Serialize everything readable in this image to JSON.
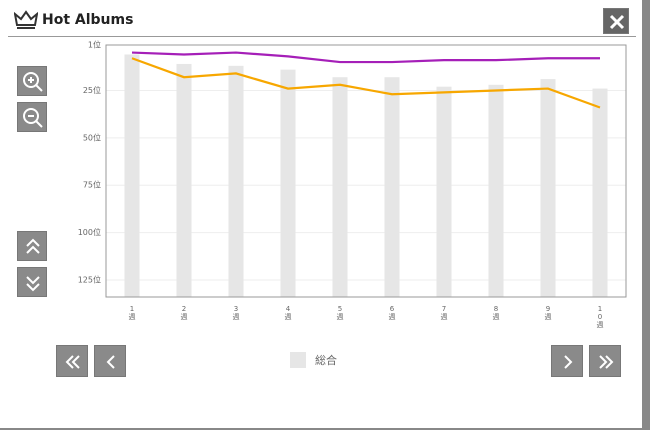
{
  "header": {
    "title": "Hot Albums"
  },
  "chart_data": {
    "type": "bar-line",
    "categories": [
      "1週",
      "2週",
      "3週",
      "4週",
      "5週",
      "6週",
      "7週",
      "8週",
      "9週",
      "10週"
    ],
    "series": [
      {
        "name": "総合",
        "kind": "bar",
        "color": "#e6e6e6",
        "values": [
          6,
          11,
          12,
          14,
          18,
          18,
          23,
          22,
          19,
          24
        ]
      },
      {
        "kind": "line",
        "color": "#a51fb8",
        "values": [
          5,
          6,
          5,
          7,
          10,
          10,
          9,
          9,
          8,
          8
        ]
      },
      {
        "kind": "line",
        "color": "#f7a700",
        "values": [
          8,
          18,
          16,
          24,
          22,
          27,
          26,
          25,
          24,
          34
        ]
      }
    ],
    "ylim": [
      1,
      134
    ],
    "y_reversed": true,
    "yticks": [
      {
        "value": 1,
        "label": "1位"
      },
      {
        "value": 25,
        "label": "25位"
      },
      {
        "value": 50,
        "label": "50位"
      },
      {
        "value": 75,
        "label": "75位"
      },
      {
        "value": 100,
        "label": "100位"
      },
      {
        "value": 125,
        "label": "125位"
      }
    ],
    "grid": true
  }
}
